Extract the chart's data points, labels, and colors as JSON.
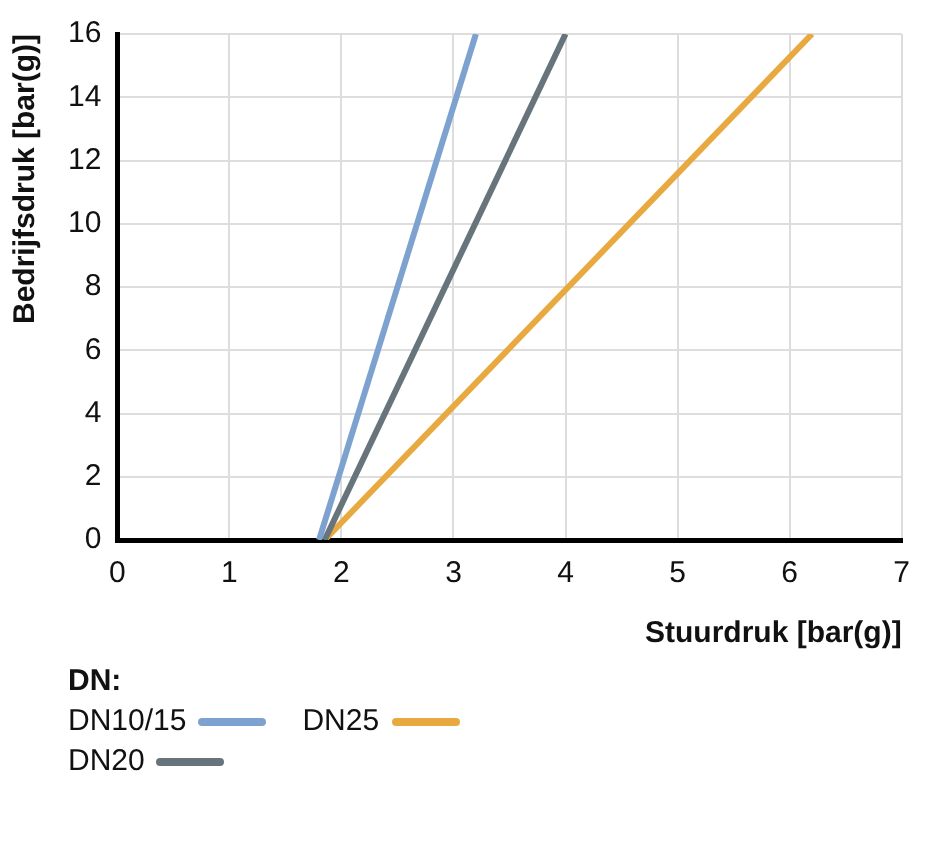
{
  "chart_data": {
    "type": "line",
    "xlabel": "Stuurdruk [bar(g)]",
    "ylabel": "Bedrijfsdruk [bar(g)]",
    "legend_title": "DN:",
    "xlim": [
      0,
      7
    ],
    "xticks": [
      0,
      1,
      2,
      3,
      4,
      5,
      6,
      7
    ],
    "ylim": [
      0,
      16
    ],
    "yticks": [
      0,
      2,
      4,
      6,
      8,
      10,
      12,
      14,
      16
    ],
    "grid": true,
    "legend": "bottom",
    "marker": "none",
    "line_style": "solid",
    "series": [
      {
        "name": "DN10/15",
        "color": "#7ea2cf",
        "x": [
          1.8,
          3.2
        ],
        "values": [
          0,
          16
        ]
      },
      {
        "name": "DN20",
        "color": "#68747b",
        "x": [
          1.85,
          4.0
        ],
        "values": [
          0,
          16
        ]
      },
      {
        "name": "DN25",
        "color": "#e9a941",
        "x": [
          1.85,
          6.2
        ],
        "values": [
          0,
          16
        ]
      }
    ]
  }
}
